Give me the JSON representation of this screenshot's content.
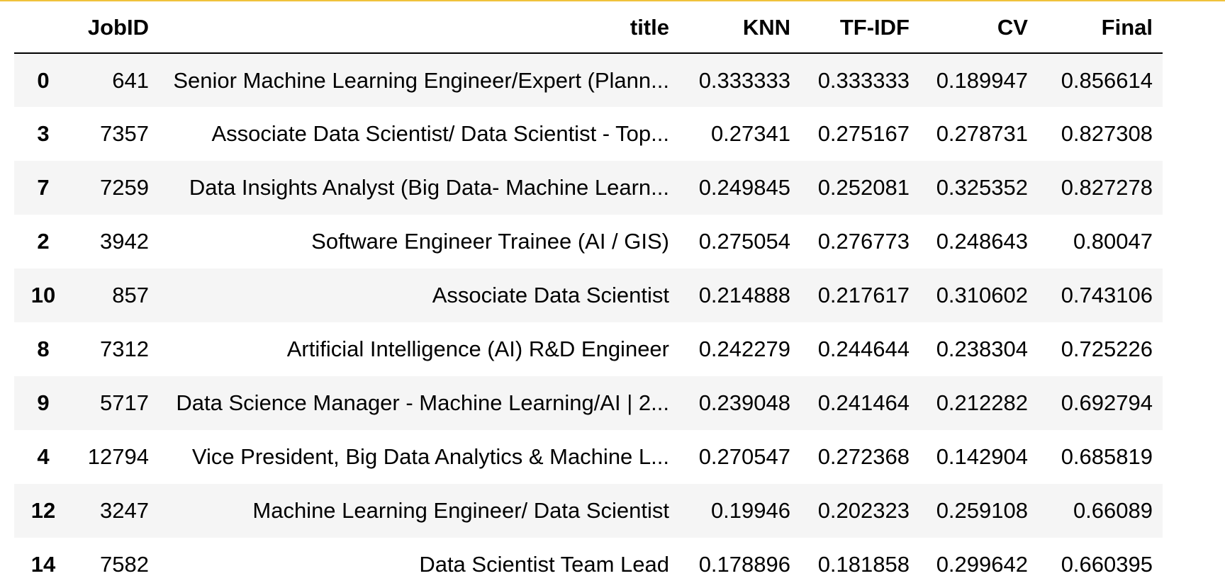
{
  "colors": {
    "top_accent": "#f0c23b",
    "row_striped": "#f5f5f5",
    "row_plain": "#ffffff",
    "header_rule": "#000000"
  },
  "table": {
    "index_header": "",
    "columns": [
      "JobID",
      "title",
      "KNN",
      "TF-IDF",
      "CV",
      "Final"
    ],
    "rows": [
      {
        "index": "0",
        "JobID": "641",
        "title": "Senior Machine Learning Engineer/Expert (Plann...",
        "KNN": "0.333333",
        "TF-IDF": "0.333333",
        "CV": "0.189947",
        "Final": "0.856614"
      },
      {
        "index": "3",
        "JobID": "7357",
        "title": "Associate Data Scientist/ Data Scientist - Top...",
        "KNN": "0.27341",
        "TF-IDF": "0.275167",
        "CV": "0.278731",
        "Final": "0.827308"
      },
      {
        "index": "7",
        "JobID": "7259",
        "title": "Data Insights Analyst (Big Data- Machine Learn...",
        "KNN": "0.249845",
        "TF-IDF": "0.252081",
        "CV": "0.325352",
        "Final": "0.827278"
      },
      {
        "index": "2",
        "JobID": "3942",
        "title": "Software Engineer Trainee (AI / GIS)",
        "KNN": "0.275054",
        "TF-IDF": "0.276773",
        "CV": "0.248643",
        "Final": "0.80047"
      },
      {
        "index": "10",
        "JobID": "857",
        "title": "Associate Data Scientist",
        "KNN": "0.214888",
        "TF-IDF": "0.217617",
        "CV": "0.310602",
        "Final": "0.743106"
      },
      {
        "index": "8",
        "JobID": "7312",
        "title": "Artificial Intelligence (AI) R&D Engineer",
        "KNN": "0.242279",
        "TF-IDF": "0.244644",
        "CV": "0.238304",
        "Final": "0.725226"
      },
      {
        "index": "9",
        "JobID": "5717",
        "title": "Data Science Manager - Machine Learning/AI | 2...",
        "KNN": "0.239048",
        "TF-IDF": "0.241464",
        "CV": "0.212282",
        "Final": "0.692794"
      },
      {
        "index": "4",
        "JobID": "12794",
        "title": "Vice President, Big Data Analytics & Machine L...",
        "KNN": "0.270547",
        "TF-IDF": "0.272368",
        "CV": "0.142904",
        "Final": "0.685819"
      },
      {
        "index": "12",
        "JobID": "3247",
        "title": "Machine Learning Engineer/ Data Scientist",
        "KNN": "0.19946",
        "TF-IDF": "0.202323",
        "CV": "0.259108",
        "Final": "0.66089"
      },
      {
        "index": "14",
        "JobID": "7582",
        "title": "Data Scientist Team Lead",
        "KNN": "0.178896",
        "TF-IDF": "0.181858",
        "CV": "0.299642",
        "Final": "0.660395"
      }
    ]
  }
}
